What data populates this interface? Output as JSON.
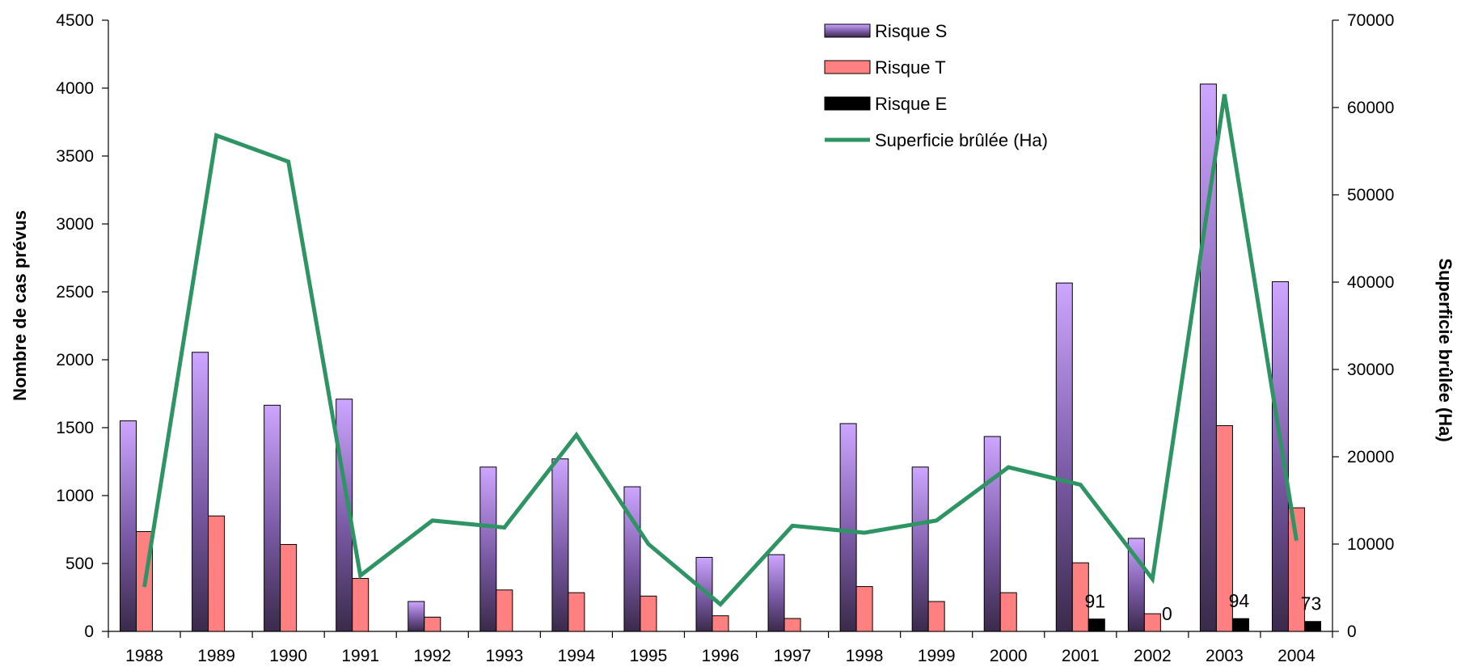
{
  "chart_data": {
    "type": "bar",
    "categories": [
      "1988",
      "1989",
      "1990",
      "1991",
      "1992",
      "1993",
      "1994",
      "1995",
      "1996",
      "1997",
      "1998",
      "1999",
      "2000",
      "2001",
      "2002",
      "2003",
      "2004"
    ],
    "ylabel": "Nombre de cas prévus",
    "y2label": "Superficie brûlée (Ha)",
    "ylim": [
      0,
      4500
    ],
    "y2lim": [
      0,
      70000
    ],
    "yticks": [
      "0",
      "500",
      "1000",
      "1500",
      "2000",
      "2500",
      "3000",
      "3500",
      "4000",
      "4500"
    ],
    "y2ticks": [
      "0",
      "10000",
      "20000",
      "30000",
      "40000",
      "50000",
      "60000",
      "70000"
    ],
    "legend_position": "top",
    "grid": false,
    "series": [
      {
        "name": "Risque S",
        "type": "bar",
        "color": "#a77fd8",
        "values": [
          1550,
          2055,
          1665,
          1710,
          220,
          1210,
          1270,
          1065,
          545,
          565,
          1530,
          1210,
          1435,
          2565,
          685,
          4030,
          2575
        ]
      },
      {
        "name": "Risque T",
        "type": "bar",
        "color": "#ff8080",
        "values": [
          735,
          850,
          640,
          390,
          105,
          305,
          285,
          260,
          115,
          95,
          330,
          220,
          285,
          505,
          130,
          1515,
          910
        ]
      },
      {
        "name": "Risque E",
        "type": "bar",
        "color": "#000000",
        "values": [
          0,
          0,
          0,
          0,
          0,
          0,
          0,
          0,
          0,
          0,
          0,
          0,
          0,
          91,
          0,
          94,
          73
        ]
      },
      {
        "name": "Superficie brûlée (Ha)",
        "type": "line",
        "axis": "right",
        "color": "#2e9463",
        "values": [
          5100,
          56800,
          53800,
          6400,
          12700,
          11900,
          22500,
          10000,
          3100,
          12100,
          11300,
          12700,
          18800,
          16800,
          6000,
          61500,
          10400
        ]
      }
    ],
    "annotations": [
      "91",
      "0",
      "94",
      "73"
    ]
  }
}
